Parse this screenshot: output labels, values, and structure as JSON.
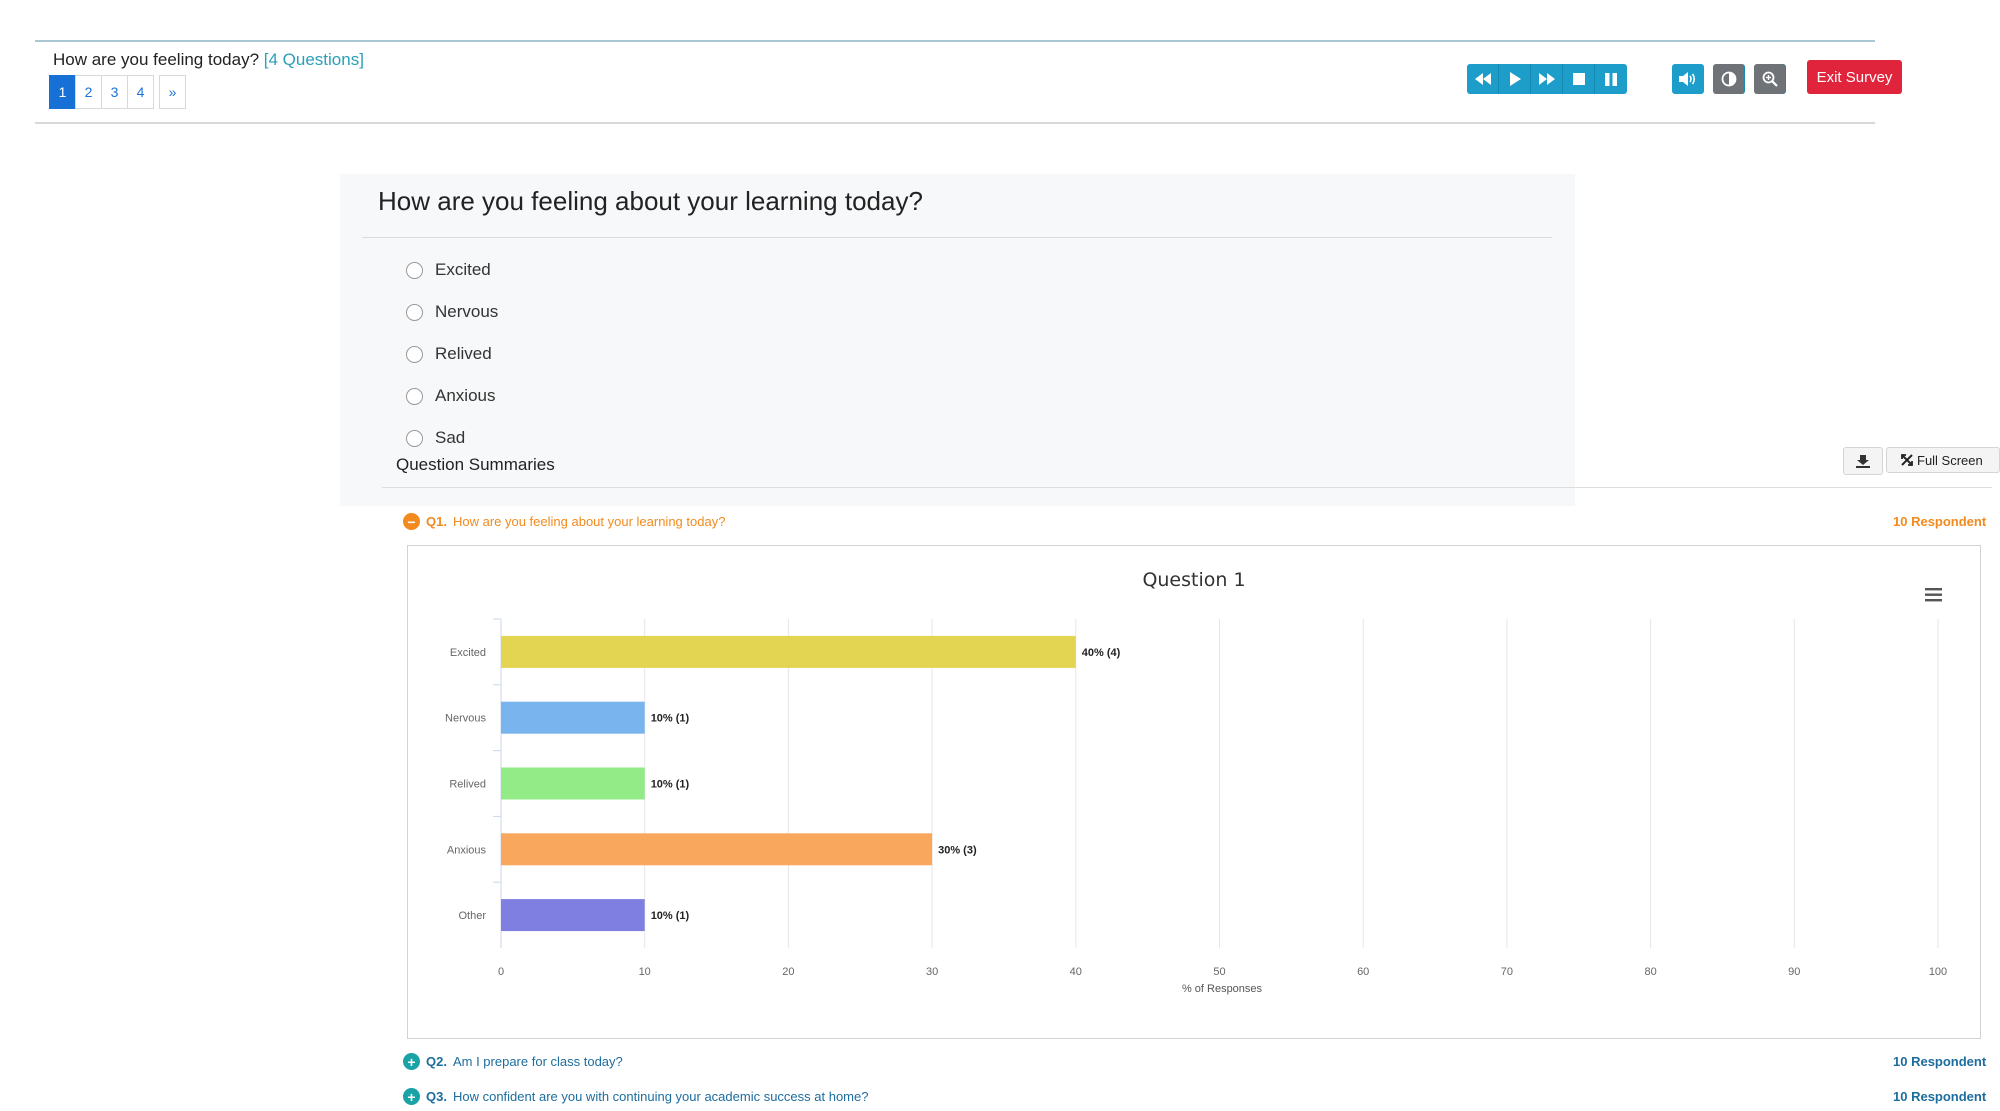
{
  "header": {
    "title": "How are you feeling today?",
    "question_count": "[4 Questions]",
    "pages": [
      "1",
      "2",
      "3",
      "4",
      "»"
    ],
    "active_page": "1",
    "toolbar": [
      "rewind-icon",
      "play-icon",
      "fast-forward-icon",
      "stop-icon",
      "pause-icon",
      "volume-icon",
      "contrast-icon",
      "zoom-icon"
    ],
    "exit_label": "Exit Survey",
    "colors": {
      "accent": "#1d9dc9",
      "exit": "#e0243b",
      "page_active": "#1670d6"
    }
  },
  "question": {
    "text": "How are you feeling about your learning today?",
    "options": [
      "Excited",
      "Nervous",
      "Relived",
      "Anxious",
      "Sad"
    ]
  },
  "summaries": {
    "title": "Question Summaries",
    "full_screen_label": "Full Screen",
    "items": [
      {
        "num": "Q1.",
        "text": "How are you feeling about your learning today?",
        "respondents": "10 Respondent",
        "state": "expanded"
      },
      {
        "num": "Q2.",
        "text": "Am I prepare for class today?",
        "respondents": "10 Respondent",
        "state": "collapsed"
      },
      {
        "num": "Q3.",
        "text": "How confident are you with continuing your academic success at home?",
        "respondents": "10 Respondent",
        "state": "collapsed"
      }
    ]
  },
  "chart_data": {
    "type": "bar",
    "orientation": "horizontal",
    "title": "Question 1",
    "categories": [
      "Excited",
      "Nervous",
      "Relived",
      "Anxious",
      "Other"
    ],
    "values": [
      40,
      10,
      10,
      30,
      10
    ],
    "data_labels": [
      "40% (4)",
      "10% (1)",
      "10% (1)",
      "30% (3)",
      "10% (1)"
    ],
    "colors": [
      "#e3d452",
      "#79b4ee",
      "#92eb86",
      "#f8a75c",
      "#7f7fe2"
    ],
    "xlabel": "% of Responses",
    "xlim": [
      0,
      100
    ],
    "xticks": [
      "0",
      "10",
      "20",
      "30",
      "40",
      "50",
      "60",
      "70",
      "80",
      "90",
      "100"
    ],
    "grid": true,
    "legend": "none"
  }
}
